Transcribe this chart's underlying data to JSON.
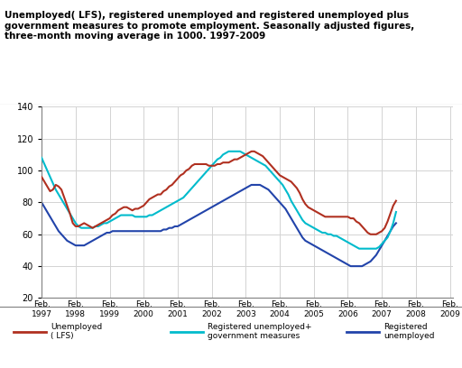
{
  "title": "Unemployed( LFS), registered unemployed and registered unemployed plus\ngovernment measures to promote employment. Seasonally adjusted figures,\nthree-month moving average in 1000. 1997-2009",
  "ylim": [
    20,
    140
  ],
  "yticks": [
    20,
    40,
    60,
    80,
    100,
    120,
    140
  ],
  "line_lfs_color": "#B03020",
  "line_reg_plus_color": "#00BBCC",
  "line_reg_color": "#2244AA",
  "line_width": 1.5,
  "xtick_years": [
    1997,
    1998,
    1999,
    2000,
    2001,
    2002,
    2003,
    2004,
    2005,
    2006,
    2007,
    2008,
    2009
  ],
  "lfs": [
    96,
    93,
    90,
    87,
    88,
    91,
    90,
    88,
    83,
    78,
    73,
    67,
    65,
    65,
    66,
    67,
    66,
    65,
    64,
    65,
    66,
    67,
    68,
    69,
    70,
    72,
    73,
    75,
    76,
    77,
    77,
    76,
    75,
    76,
    76,
    77,
    78,
    80,
    82,
    83,
    84,
    85,
    85,
    87,
    88,
    90,
    91,
    93,
    95,
    97,
    98,
    100,
    101,
    103,
    104,
    104,
    104,
    104,
    104,
    103,
    103,
    103,
    104,
    104,
    105,
    105,
    105,
    106,
    107,
    107,
    108,
    109,
    110,
    111,
    112,
    112,
    111,
    110,
    109,
    107,
    105,
    103,
    101,
    99,
    97,
    96,
    95,
    94,
    93,
    91,
    89,
    86,
    82,
    79,
    77,
    76,
    75,
    74,
    73,
    72,
    71,
    71,
    71,
    71,
    71,
    71,
    71,
    71,
    71,
    70,
    70,
    68,
    67,
    65,
    63,
    61,
    60,
    60,
    60,
    61,
    62,
    64,
    68,
    73,
    78,
    81
  ],
  "reg_plus": [
    108,
    104,
    100,
    96,
    92,
    88,
    85,
    82,
    79,
    76,
    73,
    70,
    67,
    65,
    64,
    64,
    64,
    64,
    64,
    65,
    65,
    66,
    67,
    67,
    68,
    69,
    70,
    71,
    72,
    72,
    72,
    72,
    72,
    71,
    71,
    71,
    71,
    71,
    72,
    72,
    73,
    74,
    75,
    76,
    77,
    78,
    79,
    80,
    81,
    82,
    83,
    85,
    87,
    89,
    91,
    93,
    95,
    97,
    99,
    101,
    103,
    105,
    107,
    108,
    110,
    111,
    112,
    112,
    112,
    112,
    112,
    111,
    110,
    109,
    108,
    107,
    106,
    105,
    104,
    103,
    101,
    99,
    97,
    95,
    93,
    91,
    88,
    85,
    81,
    78,
    75,
    72,
    69,
    67,
    66,
    65,
    64,
    63,
    62,
    61,
    61,
    60,
    60,
    59,
    59,
    58,
    57,
    56,
    55,
    54,
    53,
    52,
    51,
    51,
    51,
    51,
    51,
    51,
    51,
    52,
    54,
    56,
    58,
    62,
    67,
    74
  ],
  "reg": [
    80,
    77,
    74,
    71,
    68,
    65,
    62,
    60,
    58,
    56,
    55,
    54,
    53,
    53,
    53,
    53,
    54,
    55,
    56,
    57,
    58,
    59,
    60,
    61,
    61,
    62,
    62,
    62,
    62,
    62,
    62,
    62,
    62,
    62,
    62,
    62,
    62,
    62,
    62,
    62,
    62,
    62,
    62,
    63,
    63,
    64,
    64,
    65,
    65,
    66,
    67,
    68,
    69,
    70,
    71,
    72,
    73,
    74,
    75,
    76,
    77,
    78,
    79,
    80,
    81,
    82,
    83,
    84,
    85,
    86,
    87,
    88,
    89,
    90,
    91,
    91,
    91,
    91,
    90,
    89,
    88,
    86,
    84,
    82,
    80,
    78,
    76,
    73,
    70,
    67,
    64,
    61,
    58,
    56,
    55,
    54,
    53,
    52,
    51,
    50,
    49,
    48,
    47,
    46,
    45,
    44,
    43,
    42,
    41,
    40,
    40,
    40,
    40,
    40,
    41,
    42,
    43,
    45,
    47,
    50,
    53,
    56,
    59,
    62,
    65,
    67
  ]
}
